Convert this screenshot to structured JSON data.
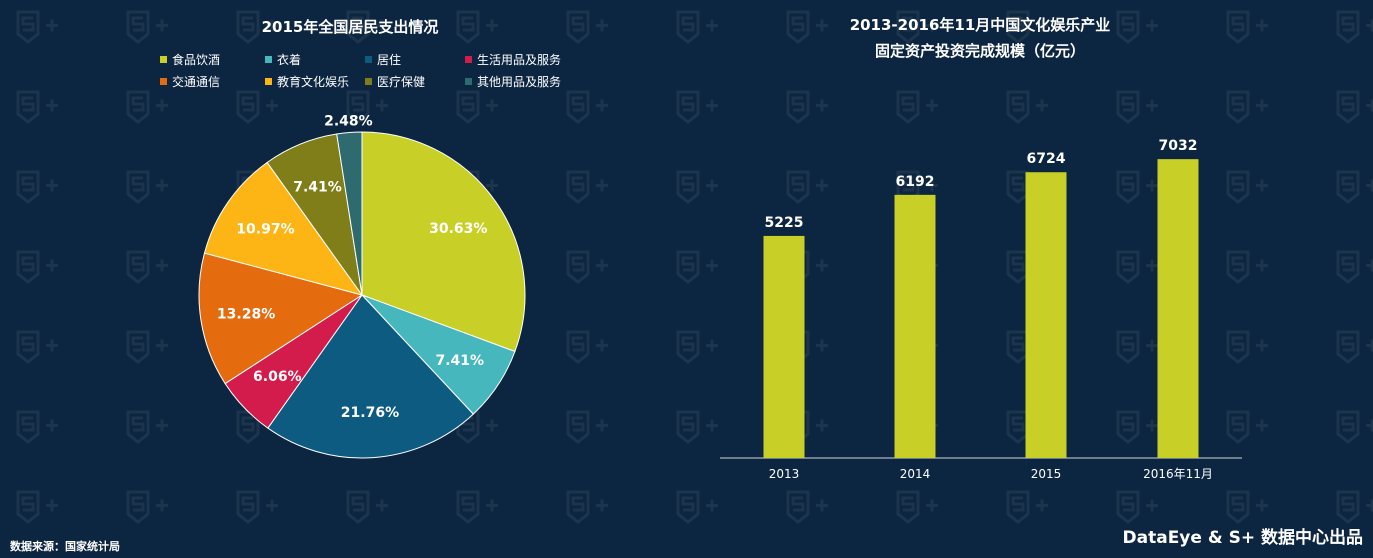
{
  "colors": {
    "background": "#0c2540",
    "bar": "#c8cf27",
    "axis": "#cfd6de"
  },
  "pie": {
    "title": "2015年全国居民支出情况"
  },
  "bar": {
    "title_line1": "2013-2016年11月中国文化娱乐产业",
    "title_line2": "固定资产投资完成规模（亿元）"
  },
  "chart_data": [
    {
      "type": "pie",
      "title": "2015年全国居民支出情况",
      "categories": [
        "食品饮酒",
        "衣着",
        "居住",
        "生活用品及服务",
        "交通通信",
        "教育文化娱乐",
        "医疗保健",
        "其他用品及服务"
      ],
      "values": [
        30.63,
        7.41,
        21.76,
        6.06,
        13.28,
        10.97,
        7.41,
        2.48
      ],
      "labels": [
        "30.63%",
        "7.41%",
        "21.76%",
        "6.06%",
        "13.28%",
        "10.97%",
        "7.41%",
        "2.48%"
      ],
      "colors": [
        "#c8cf27",
        "#46b7bd",
        "#0d5b80",
        "#d31c4b",
        "#e56b0f",
        "#fcb514",
        "#7f7e18",
        "#2e6b70"
      ],
      "legend_position": "top"
    },
    {
      "type": "bar",
      "title": "2013-2016年11月中国文化娱乐产业固定资产投资完成规模（亿元）",
      "categories": [
        "2013",
        "2014",
        "2015",
        "2016年11月"
      ],
      "values": [
        5225,
        6192,
        6724,
        7032
      ],
      "ylim": [
        0,
        8000
      ],
      "grid": false
    }
  ],
  "footer": {
    "source": "数据来源：国家统计局",
    "credit": "DataEye & S+ 数据中心出品"
  }
}
